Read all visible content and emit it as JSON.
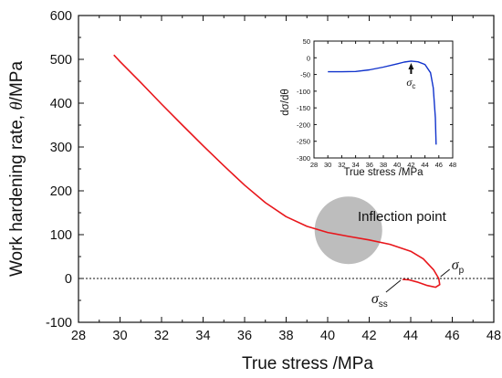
{
  "chart_data": [
    {
      "type": "line",
      "xlabel": "True stress /MPa",
      "ylabel_prefix": "Work hardening rate, ",
      "ylabel_symbol": "θ",
      "ylabel_suffix": "/MPa",
      "xlim": [
        28,
        48
      ],
      "ylim": [
        -100,
        600
      ],
      "xticks": [
        28,
        30,
        32,
        34,
        36,
        38,
        40,
        42,
        44,
        46,
        48
      ],
      "yticks": [
        -100,
        0,
        100,
        200,
        300,
        400,
        500,
        600
      ],
      "grid": false,
      "series": [
        {
          "color": "#e8161b",
          "x": [
            29.7,
            30.0,
            31.0,
            32.0,
            33.0,
            34.0,
            35.0,
            36.0,
            37.0,
            38.0,
            39.0,
            40.0,
            41.0,
            42.0,
            43.0,
            44.0,
            44.6,
            45.1,
            45.35,
            45.4,
            45.2,
            44.8,
            44.3,
            43.9,
            43.6
          ],
          "y": [
            510,
            495,
            447,
            398,
            350,
            303,
            257,
            213,
            173,
            141,
            119,
            105,
            96,
            88,
            78,
            62,
            45,
            20,
            0,
            -14,
            -20,
            -16,
            -8,
            -3,
            -2
          ]
        }
      ],
      "reference_line": {
        "y": 0,
        "style": "dotted",
        "color": "#111111"
      },
      "annotations": {
        "inflection_label": "Inflection point",
        "inflection_center": {
          "x": 41.0,
          "y": 110
        },
        "sigma_p_symbol": "σ",
        "sigma_p_sub": "p",
        "sigma_p_at": {
          "x": 45.35,
          "y": 0
        },
        "sigma_ss_symbol": "σ",
        "sigma_ss_sub": "ss",
        "sigma_ss_at": {
          "x": 43.6,
          "y": 0
        }
      }
    },
    {
      "type": "line",
      "xlabel": "True stress /MPa",
      "ylabel": "dσ/dθ",
      "xlim": [
        28,
        48
      ],
      "ylim": [
        -300,
        50
      ],
      "xticks": [
        28,
        30,
        32,
        34,
        36,
        38,
        40,
        42,
        44,
        46,
        48
      ],
      "yticks": [
        50,
        0,
        -50,
        -100,
        -150,
        -200,
        -250,
        -300
      ],
      "grid": false,
      "series": [
        {
          "color": "#1133cc",
          "x": [
            30,
            32,
            34,
            36,
            38,
            40,
            41,
            42,
            43,
            44,
            44.8,
            45.2,
            45.5,
            45.6
          ],
          "y": [
            -42,
            -42,
            -41,
            -36,
            -28,
            -18,
            -13,
            -10,
            -12,
            -20,
            -45,
            -90,
            -180,
            -260
          ]
        }
      ],
      "annotations": {
        "sigma_c_symbol": "σ",
        "sigma_c_sub": "c",
        "sigma_c_at": {
          "x": 42.0,
          "y": -10
        }
      }
    }
  ]
}
